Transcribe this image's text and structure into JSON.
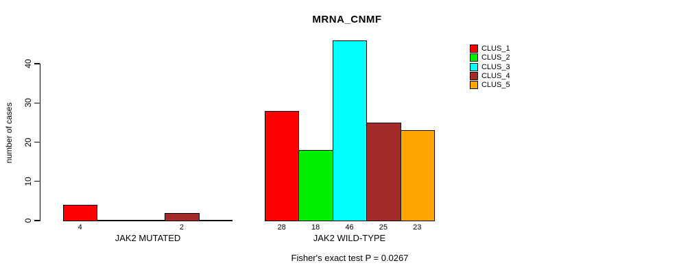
{
  "chart_data": {
    "type": "bar",
    "title": "MRNA_CNMF",
    "ylabel": "number of cases",
    "xlabel": "",
    "annotation": "Fisher's exact test P = 0.0267",
    "yticks": [
      0,
      10,
      20,
      30,
      40
    ],
    "ylim": [
      0,
      46
    ],
    "grid": false,
    "legend_position": "topright",
    "categories": [
      "JAK2 MUTATED",
      "JAK2 WILD-TYPE"
    ],
    "series": [
      {
        "name": "CLUS_1",
        "color": "#FF0000",
        "values": [
          4,
          28
        ]
      },
      {
        "name": "CLUS_2",
        "color": "#00EE00",
        "values": [
          0,
          18
        ]
      },
      {
        "name": "CLUS_3",
        "color": "#00FFFF",
        "values": [
          0,
          46
        ]
      },
      {
        "name": "CLUS_4",
        "color": "#A52A2A",
        "values": [
          2,
          25
        ]
      },
      {
        "name": "CLUS_5",
        "color": "#FFA500",
        "values": [
          0,
          23
        ]
      }
    ],
    "bar_value_labels": [
      [
        "4",
        "",
        "",
        "2",
        ""
      ],
      [
        "28",
        "18",
        "46",
        "25",
        "23"
      ]
    ],
    "colors": {
      "axis": "#000000",
      "text": "#000000",
      "background": "#FFFFFF"
    }
  }
}
